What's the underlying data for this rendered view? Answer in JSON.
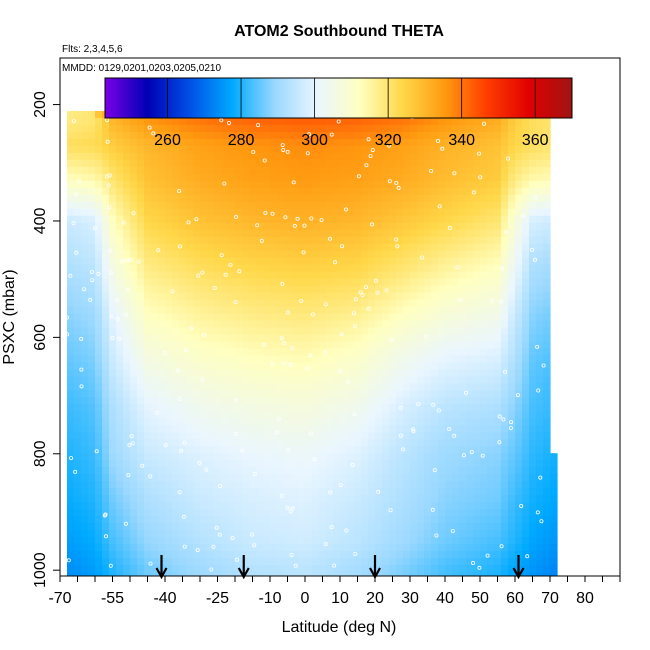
{
  "chart_data": {
    "type": "heatmap",
    "title": "ATOM2 Southbound THETA",
    "flights_note": "Flts: 2,3,4,5,6",
    "dates_note": "MMDD: 0129,0201,0203,0205,0210",
    "xlabel": "Latitude (deg N)",
    "ylabel": "PSXC (mbar)",
    "xlim": [
      -70,
      90
    ],
    "ylim": [
      1010,
      120
    ],
    "x_ticks": [
      -70,
      -55,
      -40,
      -25,
      -10,
      0,
      10,
      20,
      30,
      40,
      50,
      60,
      70,
      80
    ],
    "x_ticks_minor": [
      -65,
      -60,
      -50,
      -45,
      -35,
      -30,
      -20,
      -15,
      -5,
      5,
      15,
      25,
      35,
      45,
      55,
      65,
      75,
      85,
      90
    ],
    "y_ticks": [
      200,
      400,
      600,
      800,
      1000
    ],
    "colorbar": {
      "min": 243,
      "max": 370,
      "ticks": [
        260,
        280,
        300,
        320,
        340,
        360
      ],
      "colors": [
        "#7a00e6",
        "#0000b4",
        "#0050e6",
        "#00aaff",
        "#9ad8ff",
        "#eaf6ff",
        "#ffffc0",
        "#ffd84a",
        "#ff9a10",
        "#ff3c00",
        "#e00000",
        "#a01414"
      ]
    },
    "data_extent": {
      "lat": [
        -68,
        72
      ],
      "pressure": [
        175,
        1005
      ]
    },
    "arrows_lat": [
      -41,
      -17.5,
      20,
      61
    ],
    "arrow_color": "#000000",
    "marker_color": "#ffffff",
    "profile_lat_bands": [
      -68,
      -60,
      -55,
      -45,
      -30,
      -15,
      0,
      15,
      28,
      40,
      55,
      60,
      65,
      72
    ],
    "profile_levels": [
      {
        "p": 190,
        "theta": [
          null,
          null,
          346,
          348,
          350,
          352,
          352,
          352,
          351,
          350,
          349,
          348,
          347,
          null
        ]
      },
      {
        "p": 225,
        "theta": [
          318,
          320,
          330,
          336,
          340,
          342,
          343,
          342,
          340,
          336,
          332,
          326,
          322,
          320
        ]
      },
      {
        "p": 270,
        "theta": [
          322,
          323,
          326,
          330,
          334,
          336,
          337,
          336,
          334,
          331,
          328,
          324,
          322,
          320
        ]
      },
      {
        "p": 330,
        "theta": [
          312,
          314,
          320,
          328,
          332,
          334,
          335,
          334,
          332,
          329,
          326,
          318,
          314,
          313
        ]
      },
      {
        "p": 400,
        "theta": [
          296,
          298,
          312,
          324,
          328,
          330,
          331,
          330,
          327,
          324,
          320,
          308,
          298,
          296
        ]
      },
      {
        "p": 480,
        "theta": [
          292,
          294,
          306,
          318,
          322,
          324,
          325,
          324,
          320,
          316,
          312,
          302,
          292,
          290
        ]
      },
      {
        "p": 560,
        "theta": [
          288,
          290,
          300,
          312,
          316,
          318,
          319,
          317,
          312,
          308,
          305,
          296,
          288,
          286
        ]
      },
      {
        "p": 640,
        "theta": [
          285,
          287,
          296,
          306,
          310,
          312,
          313,
          310,
          304,
          300,
          298,
          292,
          285,
          283
        ]
      },
      {
        "p": 720,
        "theta": [
          282,
          284,
          292,
          300,
          304,
          306,
          307,
          304,
          298,
          294,
          292,
          288,
          283,
          281
        ]
      },
      {
        "p": 800,
        "theta": [
          280,
          282,
          290,
          296,
          299,
          301,
          302,
          299,
          294,
          290,
          288,
          285,
          281,
          279
        ]
      },
      {
        "p": 880,
        "theta": [
          278,
          280,
          286,
          292,
          296,
          298,
          299,
          296,
          292,
          288,
          286,
          282,
          279,
          277
        ]
      },
      {
        "p": 950,
        "theta": [
          276,
          278,
          283,
          289,
          293,
          296,
          297,
          294,
          290,
          286,
          283,
          280,
          277,
          275
        ]
      },
      {
        "p": 1000,
        "theta": [
          274,
          276,
          280,
          286,
          290,
          293,
          294,
          291,
          287,
          283,
          280,
          277,
          275,
          273
        ]
      }
    ]
  }
}
